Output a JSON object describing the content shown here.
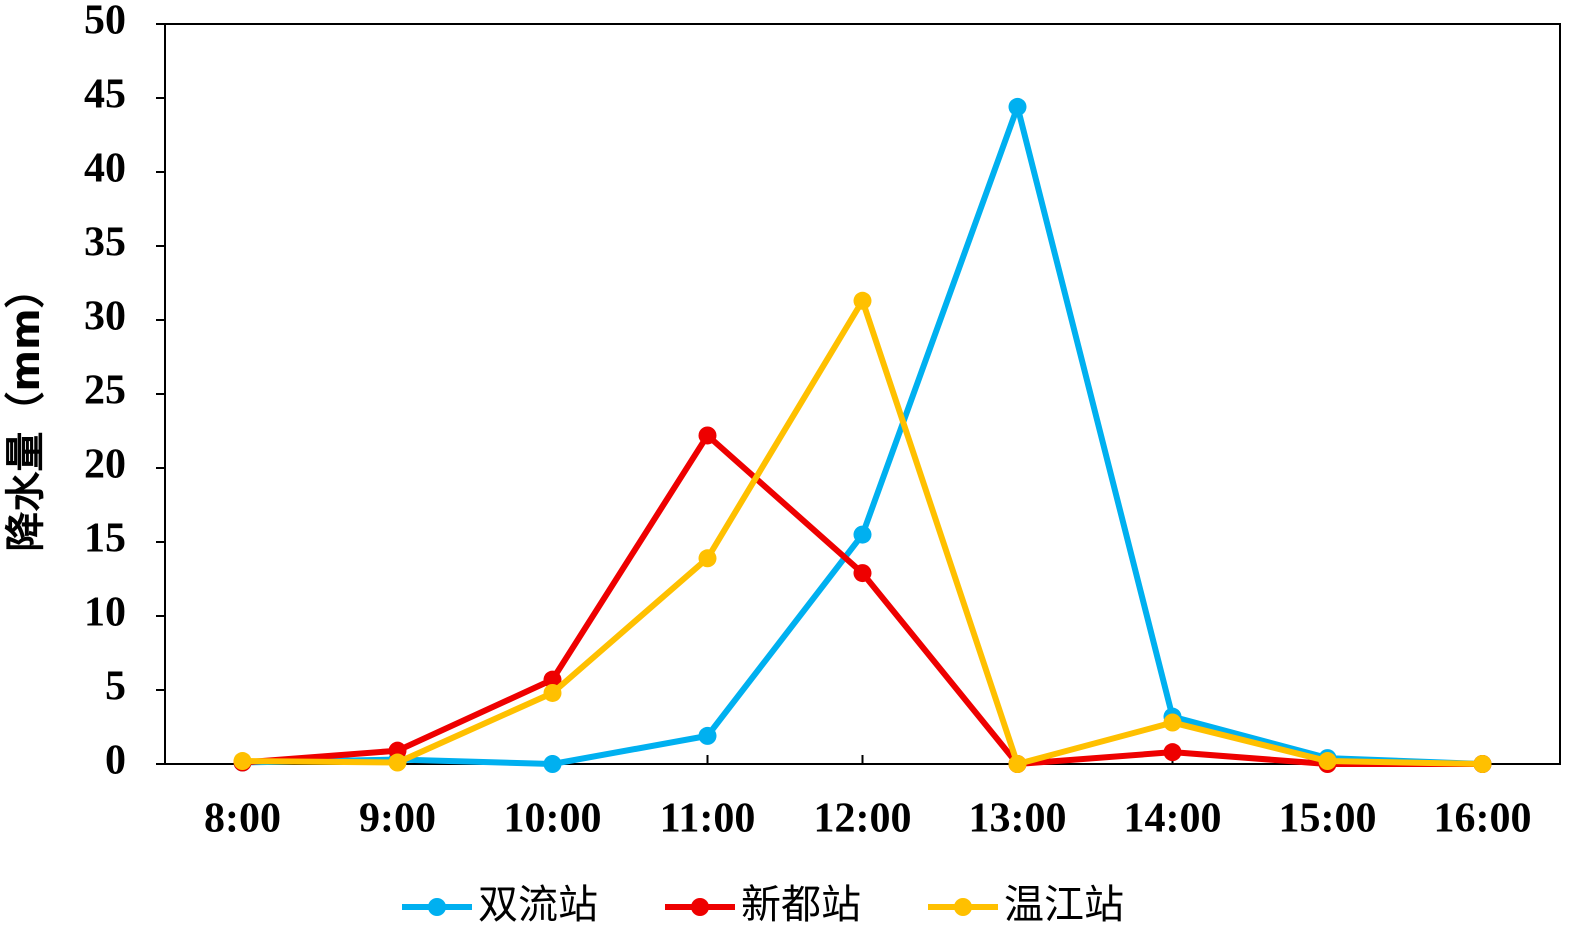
{
  "chart_data": {
    "type": "line",
    "y_label": "降水量（mm）",
    "categories": [
      "8:00",
      "9:00",
      "10:00",
      "11:00",
      "12:00",
      "13:00",
      "14:00",
      "15:00",
      "16:00"
    ],
    "series": [
      {
        "name": "双流站",
        "color": "#00b0f0",
        "values": [
          0.1,
          0.3,
          0.0,
          1.9,
          15.5,
          44.4,
          3.2,
          0.4,
          0.0
        ]
      },
      {
        "name": "新都站",
        "color": "#ee0000",
        "values": [
          0.1,
          0.9,
          5.7,
          22.2,
          12.9,
          0.0,
          0.8,
          0.0,
          0.0
        ]
      },
      {
        "name": "温江站",
        "color": "#ffc000",
        "values": [
          0.2,
          0.1,
          4.8,
          13.9,
          31.3,
          0.0,
          2.8,
          0.2,
          0.0
        ]
      }
    ],
    "ylim": [
      0,
      50
    ],
    "yticks": [
      0,
      5,
      10,
      15,
      20,
      25,
      30,
      35,
      40,
      45,
      50
    ],
    "legend": "bottom"
  }
}
